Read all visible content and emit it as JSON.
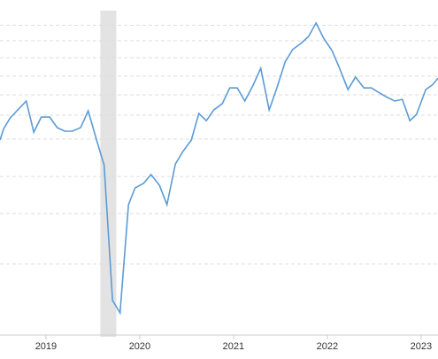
{
  "chart_data": {
    "type": "line",
    "x": [
      2018.51,
      2018.55,
      2018.62,
      2018.7,
      2018.79,
      2018.87,
      2018.95,
      2019.04,
      2019.12,
      2019.2,
      2019.28,
      2019.37,
      2019.45,
      2019.54,
      2019.62,
      2019.71,
      2019.79,
      2019.88,
      2019.95,
      2020.04,
      2020.12,
      2020.21,
      2020.29,
      2020.38,
      2020.46,
      2020.55,
      2020.63,
      2020.71,
      2020.79,
      2020.88,
      2020.96,
      2021.04,
      2021.12,
      2021.21,
      2021.29,
      2021.38,
      2021.46,
      2021.55,
      2021.63,
      2021.72,
      2021.8,
      2021.88,
      2021.96,
      2022.05,
      2022.13,
      2022.22,
      2022.3,
      2022.39,
      2022.47,
      2022.56,
      2022.64,
      2022.72,
      2022.8,
      2022.88,
      2022.95,
      2023.05,
      2023.12,
      2023.18
    ],
    "series": [
      {
        "color": "#5b9bd5",
        "values": [
          60.0,
          63.5,
          66.8,
          69.2,
          71.9,
          62.4,
          67.0,
          67.0,
          63.8,
          62.7,
          62.7,
          63.8,
          68.9,
          60.0,
          52.4,
          11.1,
          7.3,
          40.3,
          45.4,
          46.8,
          49.5,
          46.2,
          40.3,
          52.7,
          56.5,
          60.0,
          68.1,
          65.9,
          69.2,
          71.1,
          75.9,
          75.9,
          71.9,
          76.8,
          81.9,
          69.2,
          75.7,
          83.8,
          87.6,
          89.5,
          91.6,
          95.7,
          91.1,
          87.3,
          81.9,
          75.4,
          79.2,
          75.9,
          75.9,
          74.3,
          73.0,
          71.9,
          72.4,
          65.9,
          67.8,
          75.4,
          76.8,
          78.9
        ]
      }
    ],
    "xlim": [
      2018.51,
      2023.18
    ],
    "xticks": [
      2019,
      2020,
      2021,
      2022,
      2023
    ],
    "ylim": [
      0,
      100
    ],
    "gridlines": [
      95,
      90.3,
      85.1,
      79.5,
      73.8,
      67.6,
      60.3,
      48.9,
      37.6,
      22.2
    ],
    "shaded_region": [
      2019.58,
      2019.75
    ],
    "grid": true
  }
}
